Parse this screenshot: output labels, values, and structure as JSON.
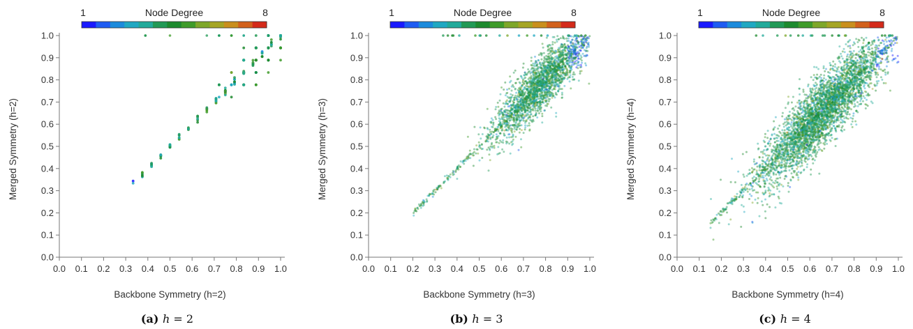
{
  "chart_data": [
    {
      "type": "scatter",
      "xlabel": "Backbone Symmetry (h=2)",
      "ylabel": "Merged Symmetry (h=2)",
      "xlim": [
        0.0,
        1.0
      ],
      "ylim": [
        0.0,
        1.0
      ],
      "xticks": [
        "0.0",
        "0.1",
        "0.2",
        "0.3",
        "0.4",
        "0.5",
        "0.6",
        "0.7",
        "0.8",
        "0.9",
        "1.0"
      ],
      "yticks": [
        "0.0",
        "0.1",
        "0.2",
        "0.3",
        "0.4",
        "0.5",
        "0.6",
        "0.7",
        "0.8",
        "0.9",
        "1.0"
      ],
      "colorbar": {
        "label": "Node Degree",
        "min_label": "1",
        "max_label": "8",
        "min": 1,
        "max": 8
      },
      "caption": {
        "letter": "(a)",
        "expr_var": "h",
        "expr_rest": " = 2"
      },
      "distribution": {
        "h": 2,
        "point_count": 420,
        "x_center": 0.93,
        "spread": 0.07,
        "diag_fraction": 0.3,
        "x_min": 0.33,
        "x_max": 1.0,
        "grid_quantized": true,
        "dominant_degree": 4
      }
    },
    {
      "type": "scatter",
      "xlabel": "Backbone Symmetry (h=3)",
      "ylabel": "Merged Symmetry (h=3)",
      "xlim": [
        0.0,
        1.0
      ],
      "ylim": [
        0.0,
        1.0
      ],
      "xticks": [
        "0.0",
        "0.1",
        "0.2",
        "0.3",
        "0.4",
        "0.5",
        "0.6",
        "0.7",
        "0.8",
        "0.9",
        "1.0"
      ],
      "yticks": [
        "0.0",
        "0.1",
        "0.2",
        "0.3",
        "0.4",
        "0.5",
        "0.6",
        "0.7",
        "0.8",
        "0.9",
        "1.0"
      ],
      "colorbar": {
        "label": "Node Degree",
        "min_label": "1",
        "max_label": "8",
        "min": 1,
        "max": 8
      },
      "caption": {
        "letter": "(b)",
        "expr_var": "h",
        "expr_rest": " = 3"
      },
      "distribution": {
        "h": 3,
        "point_count": 2600,
        "x_center": 0.78,
        "spread": 0.11,
        "diag_fraction": 0.12,
        "x_min": 0.2,
        "x_max": 1.0,
        "grid_quantized": false,
        "dominant_degree": 4
      }
    },
    {
      "type": "scatter",
      "xlabel": "Backbone Symmetry (h=4)",
      "ylabel": "Merged Symmetry (h=4)",
      "xlim": [
        0.0,
        1.0
      ],
      "ylim": [
        0.0,
        1.0
      ],
      "xticks": [
        "0.0",
        "0.1",
        "0.2",
        "0.3",
        "0.4",
        "0.5",
        "0.6",
        "0.7",
        "0.8",
        "0.9",
        "1.0"
      ],
      "yticks": [
        "0.0",
        "0.1",
        "0.2",
        "0.3",
        "0.4",
        "0.5",
        "0.6",
        "0.7",
        "0.8",
        "0.9",
        "1.0"
      ],
      "colorbar": {
        "label": "Node Degree",
        "min_label": "1",
        "max_label": "8",
        "min": 1,
        "max": 8
      },
      "caption": {
        "letter": "(c)",
        "expr_var": "h",
        "expr_rest": " = 4"
      },
      "distribution": {
        "h": 4,
        "point_count": 4200,
        "x_center": 0.66,
        "spread": 0.14,
        "diag_fraction": 0.1,
        "x_min": 0.15,
        "x_max": 1.0,
        "grid_quantized": false,
        "dominant_degree": 4
      }
    }
  ],
  "colorbar_colors": [
    "#1a1aff",
    "#1f5cf2",
    "#1c8bdc",
    "#20a8c2",
    "#22aa9a",
    "#229955",
    "#1d8a2e",
    "#3f9b2a",
    "#7ea72a",
    "#a5a524",
    "#c98f1d",
    "#d2611c",
    "#d42a1a"
  ]
}
